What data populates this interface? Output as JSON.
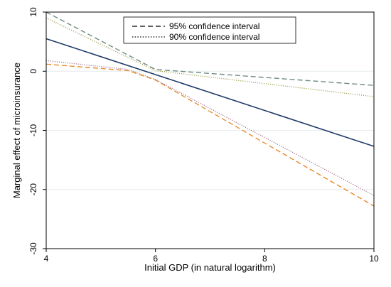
{
  "chart_data": {
    "type": "line",
    "xlabel": "Initial GDP (in natural logarithm)",
    "ylabel": "Marginal effect of microinsurance",
    "xlim": [
      4,
      10
    ],
    "ylim": [
      -30,
      10
    ],
    "xticks": [
      4,
      6,
      8,
      10
    ],
    "yticks": [
      10,
      0,
      -10,
      -20,
      -30
    ],
    "grid": true,
    "legend_position": "top-center",
    "series": [
      {
        "key": "effect",
        "x": [
          4,
          10
        ],
        "y": [
          5.5,
          -12.7
        ],
        "color": "#1f3a68",
        "style": "solid"
      },
      {
        "key": "ci95_upper",
        "name": "95% confidence interval",
        "x": [
          4,
          6,
          10
        ],
        "y": [
          10.0,
          0.3,
          -2.4
        ],
        "color": "#6e8a84",
        "style": "dashed"
      },
      {
        "key": "ci95_lower",
        "x": [
          4,
          5.5,
          6,
          10
        ],
        "y": [
          1.2,
          0.1,
          -1.5,
          -22.8
        ],
        "color": "#e8892a",
        "style": "dashed"
      },
      {
        "key": "ci90_upper",
        "name": "90% confidence interval",
        "x": [
          4,
          6,
          10
        ],
        "y": [
          9.0,
          0.1,
          -4.3
        ],
        "color": "#9a9a4a",
        "style": "dotted"
      },
      {
        "key": "ci90_lower",
        "x": [
          4,
          5.5,
          6,
          10
        ],
        "y": [
          1.8,
          0.3,
          -1.4,
          -21.0
        ],
        "color": "#a06a86",
        "style": "dotted"
      }
    ]
  }
}
